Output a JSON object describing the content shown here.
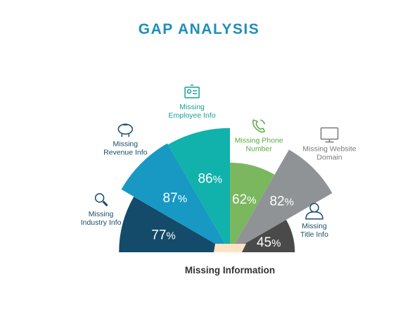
{
  "title": "GAP ANALYSIS",
  "colors": {
    "title": "#1f8fb8",
    "left_label": "#1a4d6b",
    "right_label": "#7a7a7a",
    "green_label": "#5aaa45",
    "teal_label": "#16a39a",
    "center_tab": "#fde3c4"
  },
  "chart_data": {
    "type": "polar-bar",
    "title": "GAP ANALYSIS",
    "xlabel": "Missing Information",
    "categories": [
      "Missing Industry Info",
      "Missing Revenue Info",
      "Missing Employee Info",
      "Missing Phone Number",
      "Missing Website Domain",
      "Missing Title Info"
    ],
    "values": [
      77,
      87,
      86,
      62,
      82,
      45
    ],
    "value_labels": [
      "77%",
      "87%",
      "86%",
      "62%",
      "82%",
      "45%"
    ],
    "label_lines": [
      [
        "Missing",
        "Industry Info"
      ],
      [
        "Missing",
        "Revenue Info"
      ],
      [
        "Missing",
        "Employee Info"
      ],
      [
        "Missing Phone",
        "Number"
      ],
      [
        "Missing Website",
        "Domain"
      ],
      [
        "Missing",
        "Title Info"
      ]
    ],
    "icons": [
      "magnifier-icon",
      "piggy-bank-icon",
      "id-card-icon",
      "phone-icon",
      "monitor-icon",
      "person-icon"
    ],
    "colors": [
      "#144a6a",
      "#1799c4",
      "#10b2ab",
      "#7ab75f",
      "#909395",
      "#4a4a4a"
    ]
  }
}
